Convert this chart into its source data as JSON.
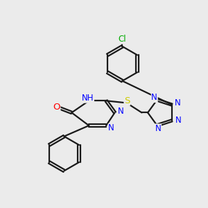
{
  "bg_color": "#ebebeb",
  "bond_color": "#1a1a1a",
  "bond_width": 1.6,
  "atom_colors": {
    "N": "#0000ff",
    "O": "#ff0000",
    "S": "#cccc00",
    "Cl": "#00aa00",
    "C": "#1a1a1a"
  },
  "font_size": 8.5
}
